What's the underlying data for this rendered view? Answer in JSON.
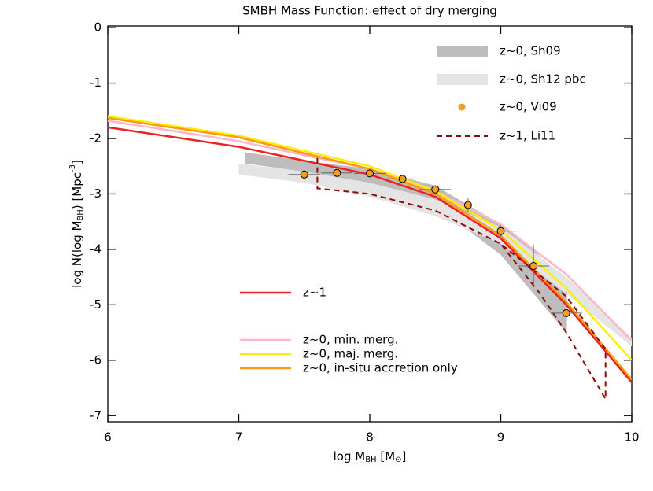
{
  "chart_data": {
    "type": "line",
    "title": "SMBH Mass Function: effect of dry merging",
    "xlabel": [
      {
        "text": "log M"
      },
      {
        "text": "BH",
        "shift": "sub"
      },
      {
        "text": " [M"
      },
      {
        "text": "⊙",
        "shift": "sub"
      },
      {
        "text": "]"
      }
    ],
    "ylabel": [
      {
        "text": "log N(log M"
      },
      {
        "text": "BH",
        "shift": "sub"
      },
      {
        "text": ") [Mpc"
      },
      {
        "text": "-3",
        "shift": "super"
      },
      {
        "text": "]"
      }
    ],
    "xlim": [
      6,
      10
    ],
    "ylim": [
      -7.11,
      0.03
    ],
    "xticks": [
      6,
      7,
      8,
      9,
      10
    ],
    "yticks": [
      0,
      -1,
      -2,
      -3,
      -4,
      -5,
      -6,
      -7
    ],
    "series": [
      {
        "name": "z~0, Sh09",
        "style": "band",
        "color": "#bdbdbd",
        "x": [
          7.05,
          7.5,
          8.0,
          8.5,
          9.0,
          9.25,
          9.5
        ],
        "upper": [
          -2.25,
          -2.4,
          -2.55,
          -2.85,
          -3.55,
          -4.0,
          -4.7
        ],
        "lower": [
          -2.45,
          -2.6,
          -2.8,
          -3.2,
          -4.1,
          -4.8,
          -5.5
        ]
      },
      {
        "name": "z~0, Sh12 pbc",
        "style": "band",
        "color": "#e4e4e4",
        "x": [
          7.0,
          7.5,
          8.0,
          8.5,
          9.0,
          9.5,
          10.0
        ],
        "upper": [
          -2.45,
          -2.6,
          -2.8,
          -3.1,
          -3.6,
          -4.5,
          -5.6
        ],
        "lower": [
          -2.65,
          -2.8,
          -3.05,
          -3.4,
          -3.9,
          -4.8,
          -5.75
        ]
      },
      {
        "name": "z~0, Vi09",
        "style": "points",
        "color": "#f0a020",
        "x": [
          7.5,
          7.75,
          8.0,
          8.25,
          8.5,
          8.75,
          9.0,
          9.25,
          9.5
        ],
        "values": [
          -2.65,
          -2.62,
          -2.63,
          -2.73,
          -2.92,
          -3.2,
          -3.67,
          -4.3,
          -5.15
        ],
        "xerr": [
          0.12,
          0.12,
          0.12,
          0.12,
          0.12,
          0.12,
          0.12,
          0.12,
          0.12
        ],
        "yerr": [
          0.05,
          0.05,
          0.05,
          0.07,
          0.08,
          0.12,
          0.1,
          0.38,
          0.4
        ]
      },
      {
        "name": "z~1, Li11",
        "style": "dashed",
        "color": "#8b0a0a",
        "x": [
          7.6,
          7.6,
          8.0,
          8.5,
          9.0,
          9.5,
          9.8,
          9.8,
          9.7,
          9.5,
          9.3,
          9.0
        ],
        "values": [
          -2.35,
          -2.9,
          -3.0,
          -3.3,
          -3.9,
          -4.85,
          -5.8,
          -6.7,
          -6.3,
          -5.5,
          -4.8,
          -3.9
        ]
      },
      {
        "name": "z~1",
        "style": "line",
        "color": "#ee2020",
        "x": [
          6,
          7,
          8,
          8.5,
          9,
          9.5,
          10
        ],
        "values": [
          -1.8,
          -2.15,
          -2.65,
          -3.05,
          -3.8,
          -5.0,
          -6.4
        ]
      },
      {
        "name": "z~0, min. merg.",
        "style": "line",
        "color": "#ffb6c8",
        "x": [
          6,
          7,
          8,
          8.5,
          9,
          9.5,
          10
        ],
        "values": [
          -1.68,
          -2.05,
          -2.55,
          -2.95,
          -3.55,
          -4.45,
          -5.65
        ]
      },
      {
        "name": "z~0, maj. merg.",
        "style": "line",
        "color": "#f8f000",
        "x": [
          6,
          7,
          8,
          8.5,
          9,
          9.5,
          10
        ],
        "values": [
          -1.6,
          -1.95,
          -2.5,
          -2.95,
          -3.65,
          -4.7,
          -6.0
        ]
      },
      {
        "name": "z~0, in-situ accretion only",
        "style": "line",
        "color": "#ff9a10",
        "x": [
          6,
          7,
          8,
          8.5,
          9,
          9.5,
          10
        ],
        "values": [
          -1.63,
          -1.98,
          -2.55,
          -3.0,
          -3.75,
          -4.95,
          -6.35
        ]
      }
    ]
  }
}
